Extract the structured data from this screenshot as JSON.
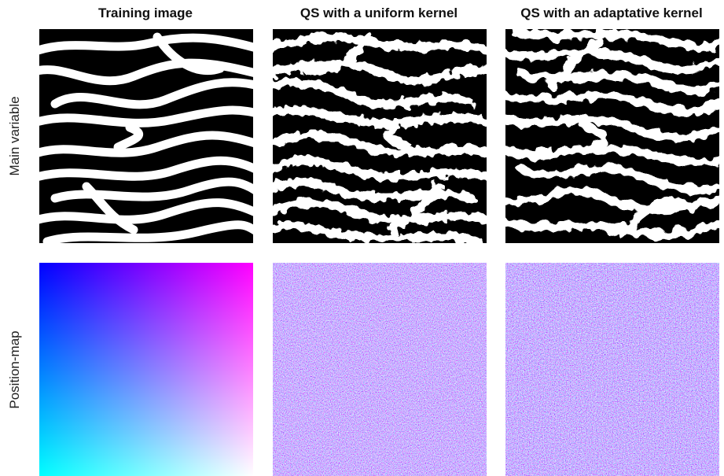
{
  "column_titles": [
    "Training image",
    "QS with a uniform kernel",
    "QS with an adaptative kernel"
  ],
  "row_labels": [
    "Main variable",
    "Position-map"
  ]
}
